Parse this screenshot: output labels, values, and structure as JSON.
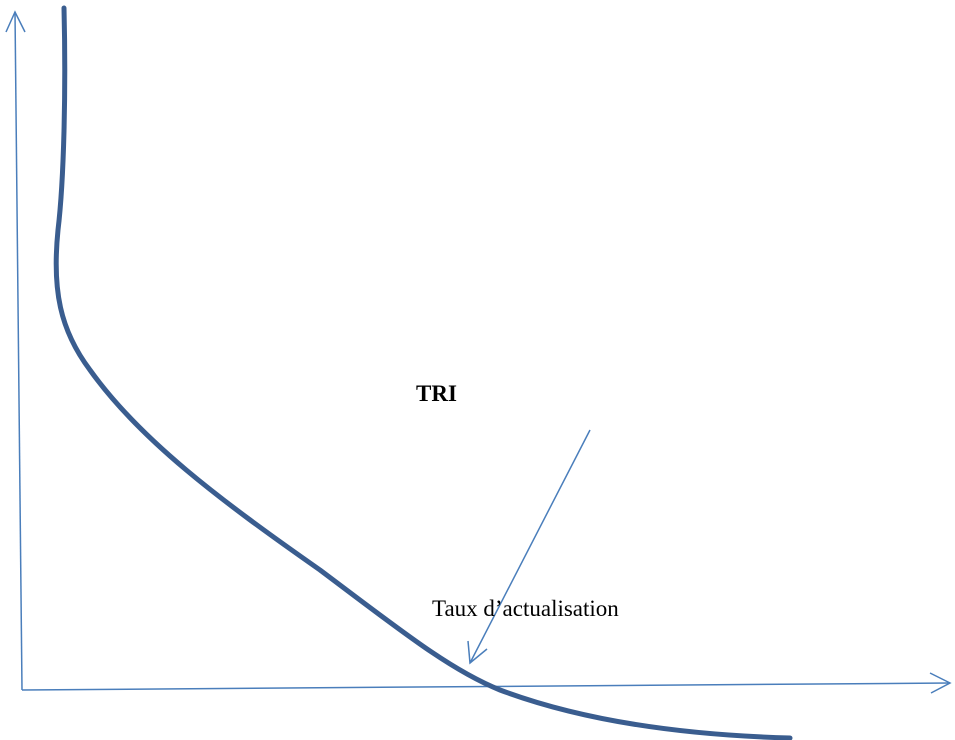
{
  "labels": {
    "curve_label": "TRI",
    "x_axis_label": "Taux d’actualisation"
  }
}
